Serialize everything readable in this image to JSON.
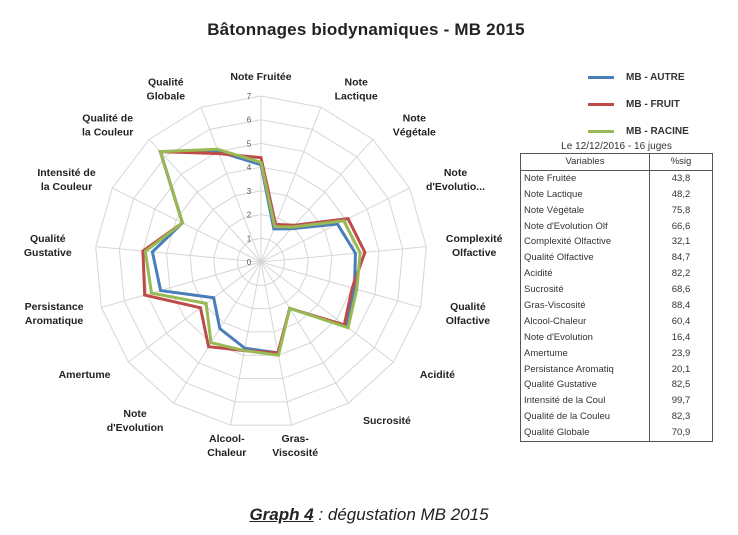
{
  "title": "Bâtonnages biodynamiques - MB 2015",
  "caption": {
    "label": "Graph 4",
    "text": " : dégustation MB 2015"
  },
  "legend": [
    {
      "name": "MB - AUTRE",
      "color": "#4a7ebb"
    },
    {
      "name": "MB - FRUIT",
      "color": "#be4b48"
    },
    {
      "name": "MB - RACINE",
      "color": "#98b954"
    }
  ],
  "table": {
    "caption": "Le 12/12/2016 - 16 juges",
    "headers": [
      "Variables",
      "%sig"
    ],
    "rows": [
      [
        "Note Fruitée",
        "43,8"
      ],
      [
        "Note Lactique",
        "48,2"
      ],
      [
        "Note Végétale",
        "75,8"
      ],
      [
        "Note d'Evolution Olf",
        "66,6"
      ],
      [
        "Complexité Olfactive",
        "32,1"
      ],
      [
        "Qualité Olfactive",
        "84,7"
      ],
      [
        "Acidité",
        "82,2"
      ],
      [
        "Sucrosité",
        "68,6"
      ],
      [
        "Gras-Viscosité",
        "88,4"
      ],
      [
        "Alcool-Chaleur",
        "60,4"
      ],
      [
        "Note d'Evolution",
        "16,4"
      ],
      [
        "Amertume",
        "23,9"
      ],
      [
        "Persistance Aromatiq",
        "20,1"
      ],
      [
        "Qualité Gustative",
        "82,5"
      ],
      [
        "Intensité de la Coul",
        "99,7"
      ],
      [
        "Qualité de la Couleu",
        "82,3"
      ],
      [
        "Qualité Globale",
        "70,9"
      ]
    ]
  },
  "chart_data": {
    "type": "radar",
    "title": "Bâtonnages biodynamiques - MB 2015",
    "categories": [
      "Note Fruitée",
      "Note Lactique",
      "Note Végétale",
      "Note d'Evolutio...",
      "Complexité Olfactive",
      "Qualité Olfactive",
      "Acidité",
      "Sucrosité",
      "Gras-Viscosité",
      "Alcool-Chaleur",
      "Note d'Evolution",
      "Amertume",
      "Persistance Aromatique",
      "Qualité Gustative",
      "Intensité de la Couleur",
      "Qualité de la Couleur",
      "Qualité Globale"
    ],
    "category_lines": [
      [
        "Note Fruitée"
      ],
      [
        "Note",
        "Lactique"
      ],
      [
        "Note",
        "Végétale"
      ],
      [
        "Note",
        "d'Evolutio..."
      ],
      [
        "Complexité",
        "Olfactive"
      ],
      [
        "Qualité",
        "Olfactive"
      ],
      [
        "Acidité"
      ],
      [
        "Sucrosité"
      ],
      [
        "Gras-",
        "Viscosité"
      ],
      [
        "Alcool-",
        "Chaleur"
      ],
      [
        "Note",
        "d'Evolution"
      ],
      [
        "Amertume"
      ],
      [
        "Persistance",
        "Aromatique"
      ],
      [
        "Qualité",
        "Gustative"
      ],
      [
        "Intensité de",
        "la Couleur"
      ],
      [
        "Qualité de",
        "la Couleur"
      ],
      [
        "Qualité",
        "Globale"
      ]
    ],
    "series": [
      {
        "name": "MB - AUTRE",
        "color": "#4a7ebb",
        "values": [
          4.1,
          1.5,
          1.9,
          3.6,
          4.0,
          4.1,
          4.5,
          2.3,
          3.9,
          3.7,
          3.3,
          2.5,
          4.4,
          4.6,
          3.7,
          6.3,
          5.0
        ]
      },
      {
        "name": "MB - FRUIT",
        "color": "#be4b48",
        "values": [
          4.4,
          1.7,
          2.1,
          4.1,
          4.4,
          4.0,
          4.4,
          2.3,
          3.9,
          3.8,
          4.2,
          3.2,
          5.1,
          5.0,
          3.7,
          6.3,
          4.9
        ]
      },
      {
        "name": "MB - RACINE",
        "color": "#98b954",
        "values": [
          4.2,
          1.6,
          2.0,
          3.9,
          4.2,
          4.2,
          4.6,
          2.3,
          4.0,
          3.8,
          4.0,
          2.9,
          4.8,
          4.9,
          3.7,
          6.3,
          5.1
        ]
      }
    ],
    "r_ticks": [
      "0",
      "1",
      "2",
      "3",
      "4",
      "5",
      "6",
      "7"
    ],
    "rlim": [
      0,
      7
    ],
    "grid": true,
    "legend_position": "right"
  }
}
